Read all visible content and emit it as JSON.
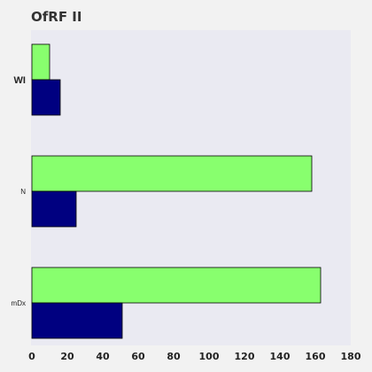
{
  "chart_data": {
    "type": "bar",
    "orientation": "horizontal",
    "title": "OfRF II",
    "xlabel": "",
    "ylabel": "",
    "categories": [
      "WI",
      "N",
      "mDx"
    ],
    "series": [
      {
        "values": [
          10,
          158,
          163
        ],
        "color": "#88ff6e"
      },
      {
        "values": [
          16,
          25,
          51
        ],
        "color": "#000080"
      }
    ],
    "xlim": [
      0,
      180
    ],
    "xticks": [
      0,
      20,
      40,
      60,
      80,
      100,
      120,
      140,
      160,
      180
    ],
    "grid": false,
    "legend": "none",
    "colors": {
      "plot_background": "#eaeaf2",
      "page_background": "#f2f2f2",
      "bar_edge": "#000000"
    }
  }
}
